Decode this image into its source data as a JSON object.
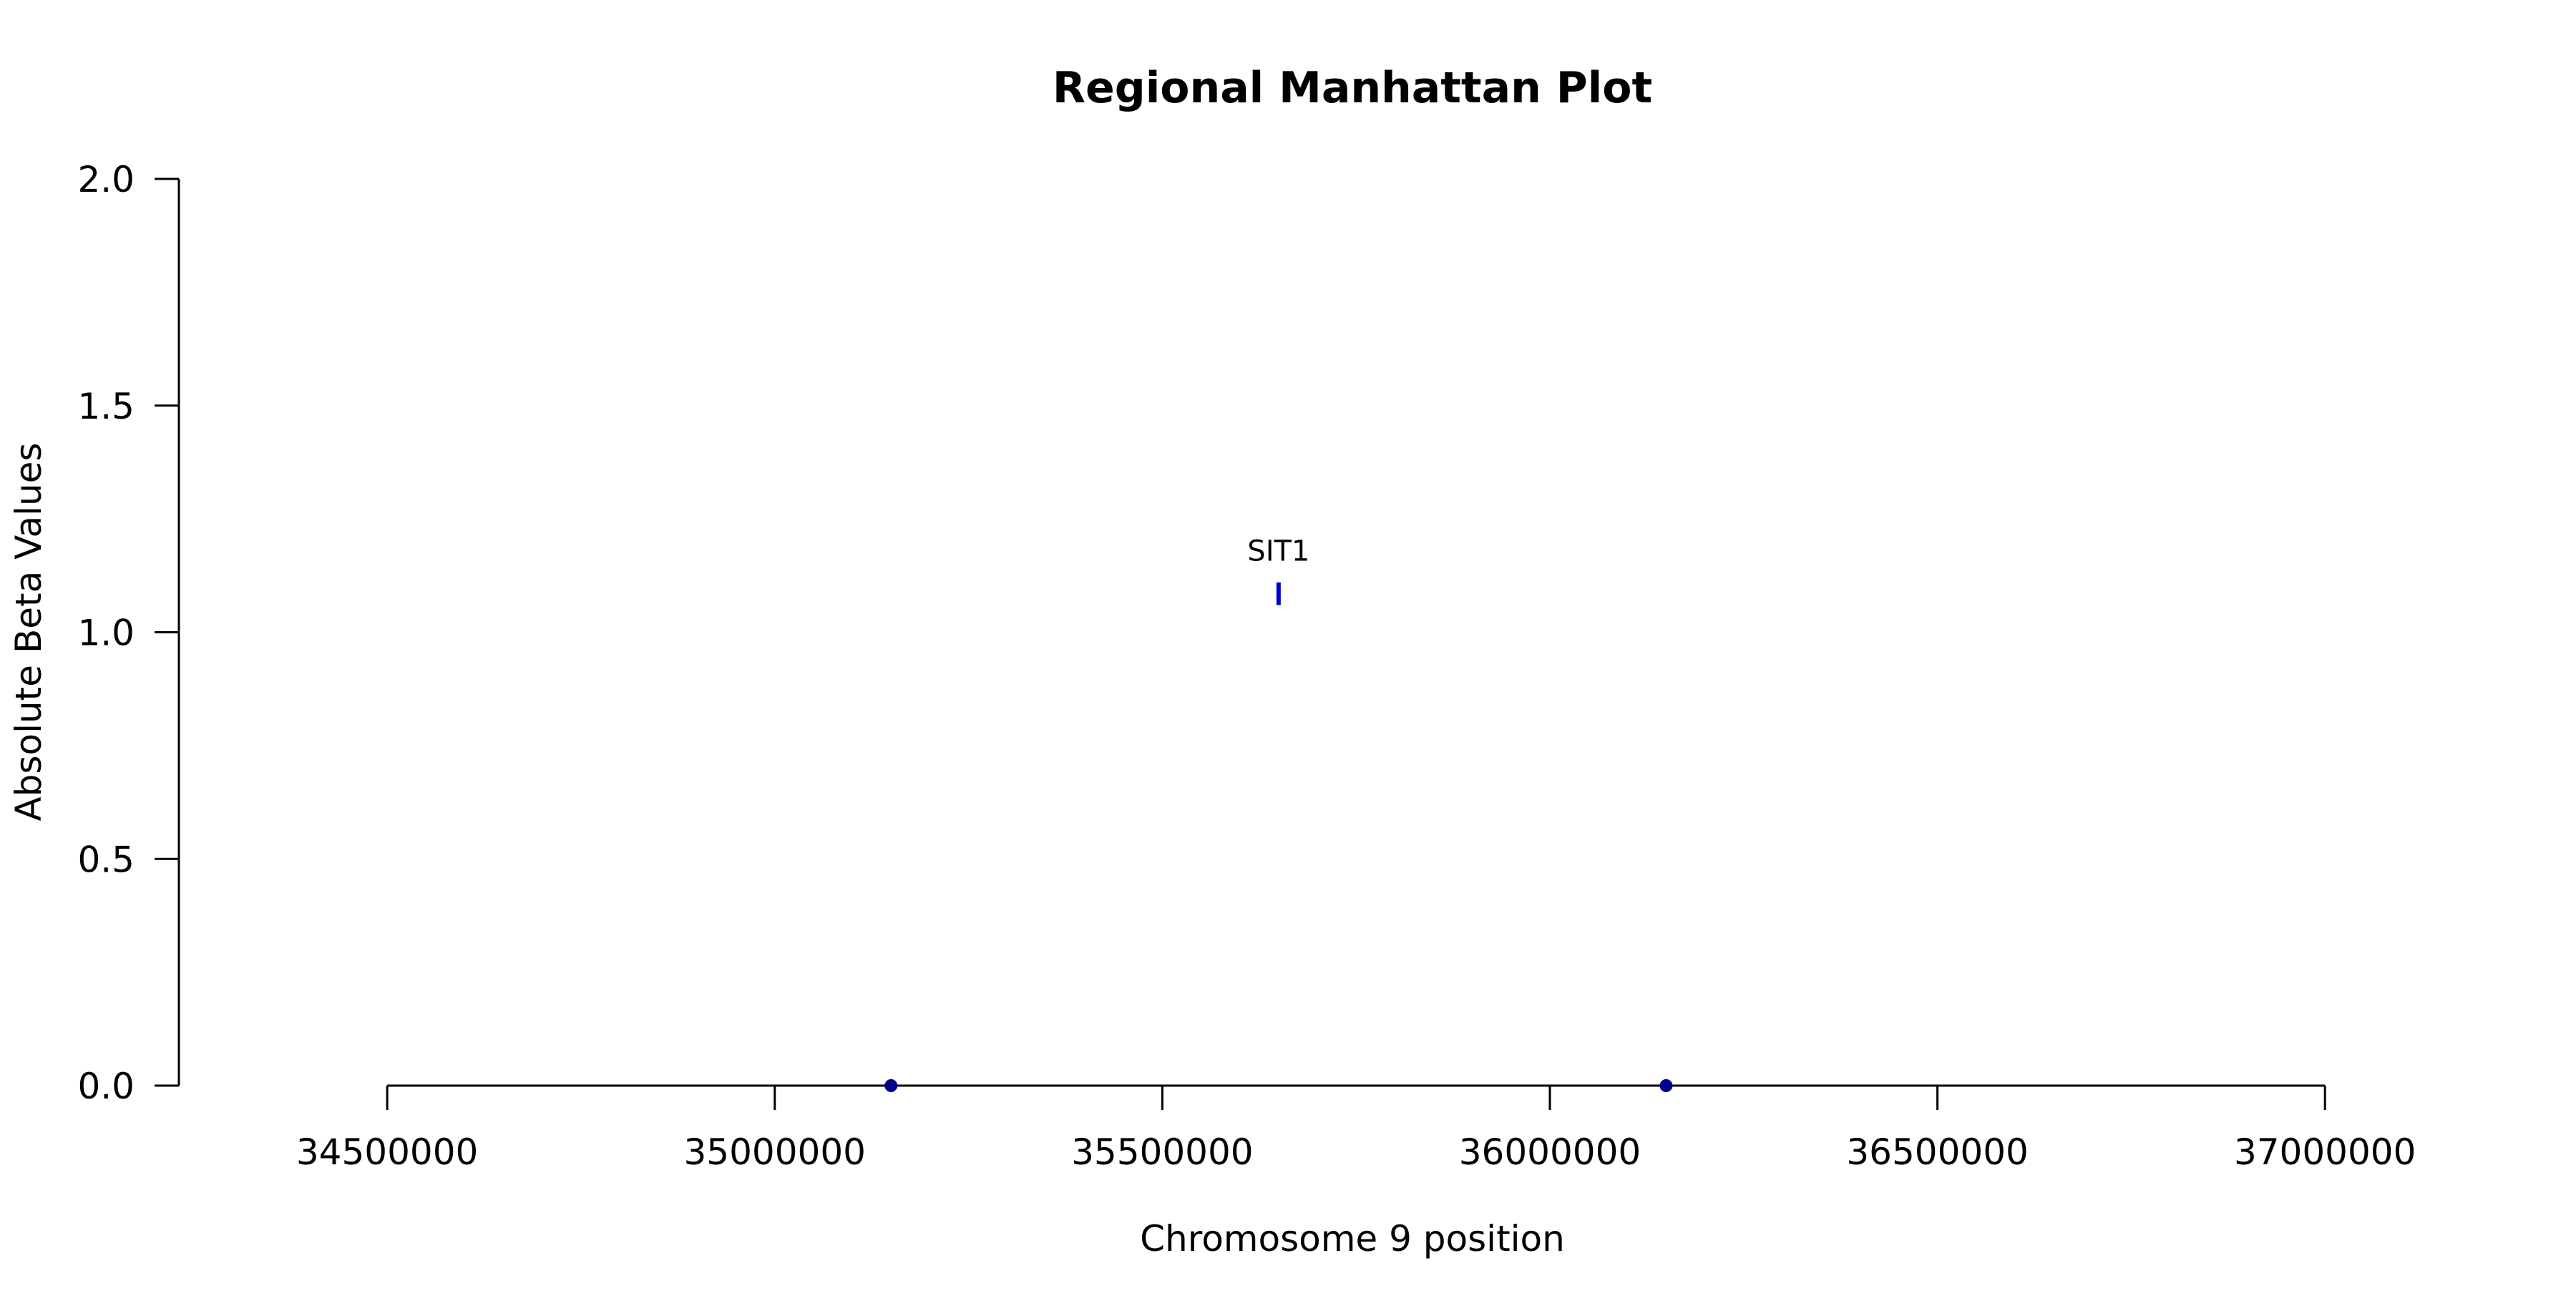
{
  "chart_data": {
    "type": "scatter",
    "title": "Regional Manhattan Plot",
    "xlabel": "Chromosome 9 position",
    "ylabel": "Absolute Beta Values",
    "xlim": [
      34150000,
      37250000
    ],
    "ylim": [
      0,
      2.0
    ],
    "x_ticks": [
      34500000,
      35000000,
      35500000,
      36000000,
      36500000,
      37000000
    ],
    "x_tick_labels": [
      "34500000",
      "35000000",
      "35500000",
      "36000000",
      "36500000",
      "37000000"
    ],
    "y_ticks": [
      0,
      0.5,
      1.0,
      1.5,
      2.0
    ],
    "y_tick_labels": [
      "0.0",
      "0.5",
      "1.0",
      "1.5",
      "2.0"
    ],
    "x_axis_range": [
      34500000,
      37000000
    ],
    "y_axis_range": [
      0,
      2.0
    ],
    "grid": false,
    "points": [
      {
        "x": 35150000,
        "y": 0.0
      },
      {
        "x": 36150000,
        "y": 0.0
      }
    ],
    "genes": [
      {
        "name": "SIT1",
        "x": 35650000,
        "y_low": 1.06,
        "y_high": 1.11,
        "label_y": 1.18
      }
    ],
    "colors": {
      "points": "#00008B",
      "gene_marker": "#0000CD",
      "axes": "#000000"
    }
  }
}
